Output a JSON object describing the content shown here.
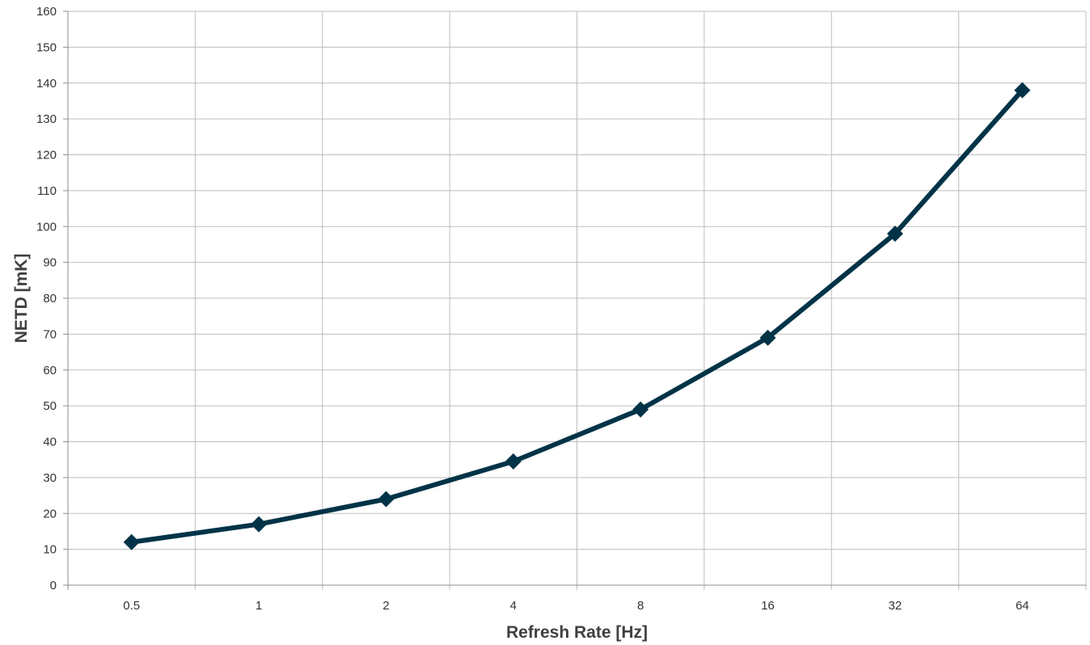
{
  "chart_data": {
    "type": "line",
    "title": "",
    "xlabel": "Refresh Rate [Hz]",
    "ylabel": "NETD [mK]",
    "categories": [
      "0.5",
      "1",
      "2",
      "4",
      "8",
      "16",
      "32",
      "64"
    ],
    "series": [
      {
        "values": [
          12,
          17,
          24,
          34.5,
          49,
          69,
          98,
          138
        ]
      }
    ],
    "ylim": [
      0,
      160
    ],
    "ytick_step": 10,
    "grid": true,
    "legend": "none",
    "marker": "diamond",
    "line_color": "#003347"
  }
}
